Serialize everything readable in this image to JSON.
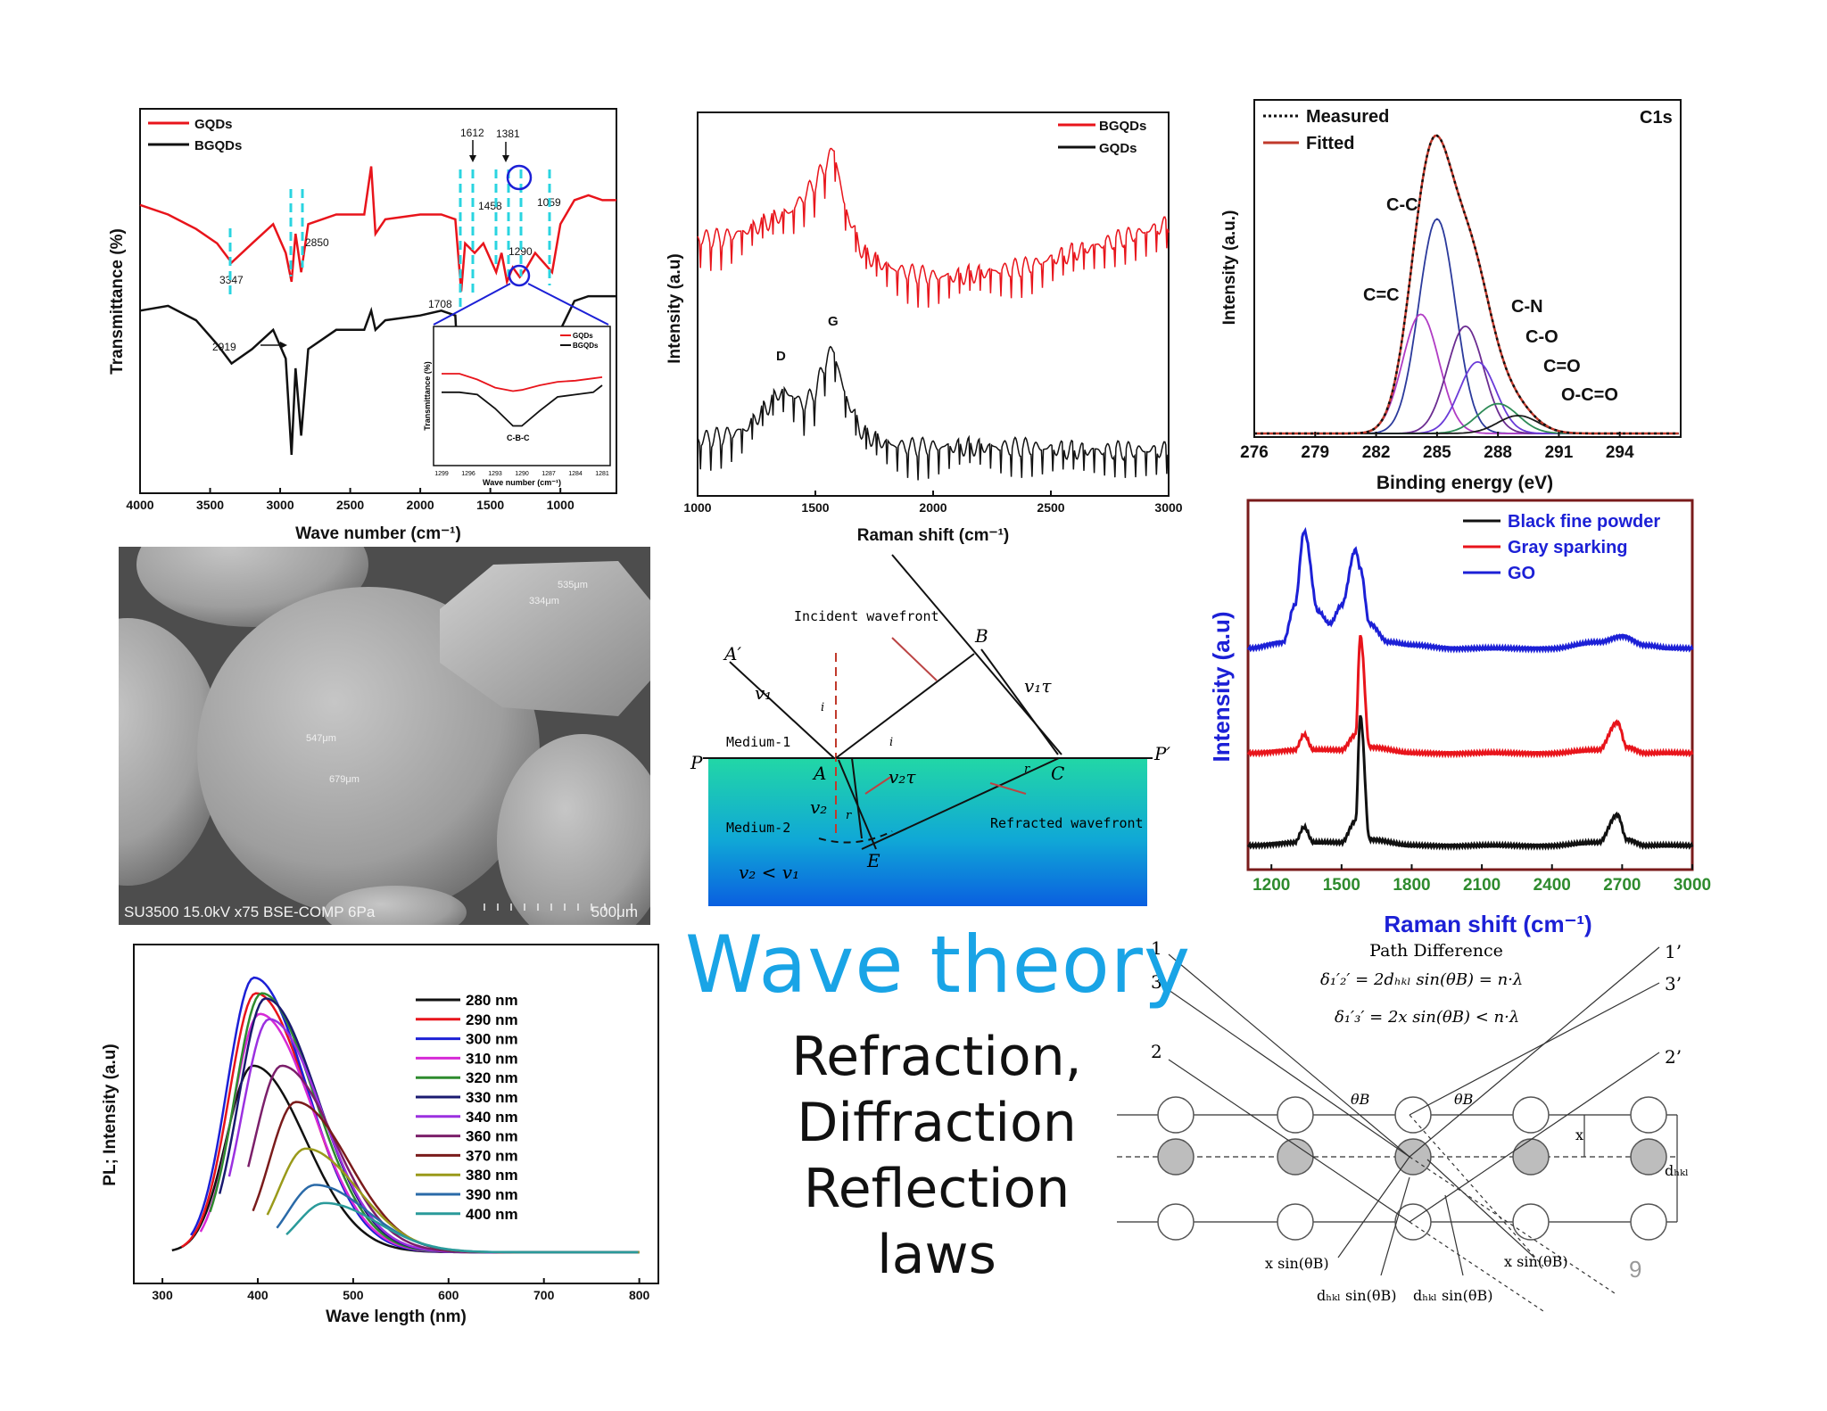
{
  "slide": {
    "title": "Wave theory",
    "subtitle_lines": [
      "Refraction,",
      "Diffraction",
      "Reflection",
      "laws"
    ],
    "page_number": "9",
    "accent_color": "#19a4e6"
  },
  "chart_data": [
    {
      "id": "ftir",
      "type": "line",
      "xlabel": "Wave number (cm⁻¹)",
      "ylabel": "Transmittance (%)",
      "xlim": [
        4000,
        600
      ],
      "x_ticks": [
        "4000",
        "3500",
        "3000",
        "2500",
        "2000",
        "1500",
        "1000"
      ],
      "legend": [
        {
          "name": "GQDs",
          "color": "#e8141b"
        },
        {
          "name": "BGQDs",
          "color": "#111111"
        }
      ],
      "peak_labels": [
        "3347",
        "2919",
        "2850",
        "1708",
        "1612",
        "1381",
        "1458",
        "1290",
        "1059"
      ],
      "series": [
        {
          "name": "GQDs",
          "x": [
            4000,
            3800,
            3600,
            3450,
            3347,
            3200,
            3050,
            2960,
            2919,
            2890,
            2850,
            2800,
            2600,
            2400,
            2350,
            2320,
            2250,
            2000,
            1850,
            1750,
            1708,
            1680,
            1612,
            1550,
            1458,
            1420,
            1381,
            1340,
            1290,
            1240,
            1180,
            1059,
            1000,
            900,
            800,
            700,
            600
          ],
          "y": [
            60,
            58,
            55,
            52,
            48,
            52,
            56,
            50,
            44,
            54,
            46,
            56,
            58,
            58,
            68,
            54,
            57,
            58,
            58,
            57,
            42,
            52,
            50,
            52,
            46,
            50,
            44,
            47,
            45,
            47,
            50,
            46,
            56,
            61,
            62,
            61,
            61
          ]
        },
        {
          "name": "BGQDs",
          "x": [
            4000,
            3800,
            3600,
            3450,
            3347,
            3200,
            3050,
            2960,
            2919,
            2890,
            2850,
            2800,
            2600,
            2400,
            2350,
            2320,
            2250,
            2000,
            1850,
            1750,
            1708,
            1680,
            1612,
            1550,
            1458,
            1420,
            1381,
            1340,
            1290,
            1240,
            1180,
            1059,
            1000,
            900,
            800,
            700,
            600
          ],
          "y": [
            38,
            39,
            36,
            31,
            27,
            30,
            34,
            28,
            8,
            26,
            12,
            30,
            34,
            34,
            38,
            34,
            36,
            37,
            38,
            37,
            14,
            32,
            26,
            34,
            22,
            30,
            24,
            28,
            22,
            28,
            32,
            24,
            34,
            40,
            41,
            41,
            41
          ]
        }
      ],
      "inset": {
        "xlabel": "Wave number (cm⁻¹)",
        "ylabel": "Transmittance (%)",
        "x_ticks": [
          "1299",
          "1296",
          "1293",
          "1290",
          "1287",
          "1284",
          "1281"
        ],
        "legend": [
          "GQDs",
          "BGQDs"
        ],
        "annotation": "C-B-C",
        "series": [
          {
            "name": "GQDs",
            "x": [
              1299,
              1297,
              1295,
              1293,
              1291,
              1290,
              1288,
              1286,
              1284,
              1282,
              1281
            ],
            "y": [
              70,
              70,
              65,
              58,
              55,
              56,
              60,
              63,
              64,
              66,
              67
            ]
          },
          {
            "name": "BGQDs",
            "x": [
              1299,
              1297,
              1295,
              1293,
              1291,
              1290,
              1288,
              1286,
              1284,
              1282,
              1281
            ],
            "y": [
              54,
              54,
              52,
              40,
              25,
              25,
              38,
              50,
              52,
              54,
              60
            ]
          }
        ]
      }
    },
    {
      "id": "raman_gqd",
      "type": "line",
      "xlabel": "Raman shift (cm⁻¹)",
      "ylabel": "Intensity (a.u)",
      "xlim": [
        1000,
        3000
      ],
      "x_ticks": [
        "1000",
        "1500",
        "2000",
        "2500",
        "3000"
      ],
      "legend": [
        {
          "name": "BGQDs",
          "color": "#e8141b"
        },
        {
          "name": "GQDs",
          "color": "#111111"
        }
      ],
      "peak_labels": [
        "D",
        "G"
      ],
      "series": [
        {
          "name": "BGQDs",
          "x": [
            1000,
            1100,
            1200,
            1300,
            1400,
            1500,
            1550,
            1580,
            1620,
            1700,
            1800,
            1900,
            2000,
            2100,
            2200,
            2300,
            2400,
            2500,
            2600,
            2700,
            2800,
            2900,
            3000
          ],
          "y": [
            70,
            70,
            72,
            75,
            78,
            86,
            92,
            96,
            80,
            66,
            62,
            60,
            59,
            59,
            60,
            61,
            62,
            64,
            66,
            68,
            70,
            72,
            74
          ]
        },
        {
          "name": "GQDs",
          "x": [
            1000,
            1100,
            1200,
            1300,
            1350,
            1400,
            1450,
            1500,
            1550,
            1580,
            1620,
            1700,
            1800,
            1900,
            2000,
            2200,
            2400,
            2600,
            2800,
            3000
          ],
          "y": [
            12,
            13,
            15,
            22,
            26,
            25,
            22,
            26,
            36,
            38,
            26,
            14,
            11,
            10,
            10,
            10,
            10,
            9,
            9,
            9
          ]
        }
      ]
    },
    {
      "id": "xps_c1s",
      "type": "line",
      "title": "C1s",
      "xlabel": "Binding energy (eV)",
      "ylabel": "Intensity (a.u.)",
      "xlim": [
        276,
        297
      ],
      "x_ticks": [
        "276",
        "279",
        "282",
        "285",
        "288",
        "291",
        "294"
      ],
      "legend": [
        {
          "name": "Measured",
          "style": "dotted"
        },
        {
          "name": "Fitted",
          "color": "#c0392b"
        }
      ],
      "peak_labels": [
        "C-C",
        "C=C",
        "C-N",
        "C-O",
        "C=O",
        "O-C=O"
      ],
      "components": [
        {
          "name": "C-C",
          "center": 285.0,
          "height": 0.72,
          "width": 0.9,
          "color": "#2b3a9c"
        },
        {
          "name": "C=C",
          "center": 284.2,
          "height": 0.4,
          "width": 0.9,
          "color": "#b03cc4"
        },
        {
          "name": "C-N",
          "center": 286.4,
          "height": 0.36,
          "width": 0.9,
          "color": "#6b2c91"
        },
        {
          "name": "C-O",
          "center": 287.0,
          "height": 0.24,
          "width": 0.9,
          "color": "#6a3bd8"
        },
        {
          "name": "C=O",
          "center": 288.0,
          "height": 0.1,
          "width": 1.0,
          "color": "#2e8b57"
        },
        {
          "name": "O-C=O",
          "center": 289.0,
          "height": 0.06,
          "width": 1.0,
          "color": "#1b1b1b"
        }
      ],
      "envelope_peak": 1.0
    },
    {
      "id": "raman_powder",
      "type": "line",
      "xlabel": "Raman shift (cm⁻¹)",
      "ylabel": "Intensity (a.u)",
      "xlim": [
        1100,
        3000
      ],
      "x_ticks": [
        "1200",
        "1500",
        "1800",
        "2100",
        "2400",
        "2700",
        "3000"
      ],
      "legend": [
        {
          "name": "Black fine powder",
          "color": "#111111"
        },
        {
          "name": "Gray sparking",
          "color": "#e8141b"
        },
        {
          "name": "GO",
          "color": "#1c20d6"
        }
      ],
      "series": [
        {
          "name": "Black fine powder",
          "x": [
            1100,
            1300,
            1340,
            1380,
            1500,
            1560,
            1580,
            1620,
            1800,
            2000,
            2400,
            2600,
            2680,
            2720,
            2800,
            3000
          ],
          "y": [
            2,
            3,
            8,
            3,
            3,
            10,
            44,
            4,
            2,
            2,
            2,
            3,
            12,
            4,
            2,
            2
          ]
        },
        {
          "name": "Gray sparking",
          "x": [
            1100,
            1300,
            1340,
            1380,
            1500,
            1560,
            1580,
            1620,
            1800,
            2000,
            2400,
            2600,
            2680,
            2720,
            2800,
            3000
          ],
          "y": [
            32,
            33,
            38,
            33,
            33,
            38,
            70,
            34,
            32,
            32,
            32,
            33,
            42,
            34,
            32,
            32
          ]
        },
        {
          "name": "GO",
          "x": [
            1100,
            1250,
            1300,
            1340,
            1400,
            1450,
            1500,
            1560,
            1580,
            1620,
            1700,
            1800,
            2000,
            2400,
            2600,
            2700,
            2800,
            2900,
            3000
          ],
          "y": [
            66,
            68,
            80,
            104,
            78,
            74,
            80,
            98,
            92,
            74,
            68,
            67,
            66,
            66,
            68,
            70,
            67,
            66,
            66
          ]
        }
      ]
    },
    {
      "id": "pl",
      "type": "line",
      "xlabel": "Wave length (nm)",
      "ylabel": "PL; Intensity (a.u)",
      "xlim": [
        270,
        820
      ],
      "x_ticks": [
        "300",
        "400",
        "500",
        "600",
        "700",
        "800"
      ],
      "series": [
        {
          "name": "280 nm",
          "color": "#111111",
          "peak": 395,
          "height": 0.72,
          "start": 310
        },
        {
          "name": "290 nm",
          "color": "#e8141b",
          "peak": 398,
          "height": 1.0,
          "start": 320
        },
        {
          "name": "300 nm",
          "color": "#1c20d6",
          "peak": 396,
          "height": 1.06,
          "start": 330
        },
        {
          "name": "310 nm",
          "color": "#d62ad6",
          "peak": 402,
          "height": 0.92,
          "start": 340
        },
        {
          "name": "320 nm",
          "color": "#2e8b2e",
          "peak": 404,
          "height": 1.0,
          "start": 350
        },
        {
          "name": "330 nm",
          "color": "#1a1a70",
          "peak": 408,
          "height": 0.98,
          "start": 360
        },
        {
          "name": "340 nm",
          "color": "#9b30e0",
          "peak": 412,
          "height": 0.9,
          "start": 370
        },
        {
          "name": "360 nm",
          "color": "#7b1f6a",
          "peak": 425,
          "height": 0.72,
          "start": 390
        },
        {
          "name": "370 nm",
          "color": "#7a1b1b",
          "peak": 440,
          "height": 0.58,
          "start": 395
        },
        {
          "name": "380 nm",
          "color": "#9a9a1a",
          "peak": 450,
          "height": 0.4,
          "start": 410
        },
        {
          "name": "390 nm",
          "color": "#2a6aa8",
          "peak": 460,
          "height": 0.26,
          "start": 420
        },
        {
          "name": "400 nm",
          "color": "#2a9a9a",
          "peak": 470,
          "height": 0.19,
          "start": 430
        }
      ]
    }
  ],
  "sem": {
    "caption": "SU3500 15.0kV x75 BSE-COMP 6Pa",
    "scale": "500μm",
    "measurements": [
      "535μm",
      "334μm",
      "547μm",
      "679μm"
    ]
  },
  "refraction": {
    "incident_wavefront": "Incident wavefront",
    "refracted_wavefront": "Refracted wavefront",
    "medium1": "Medium-1",
    "medium2": "Medium-2",
    "labels": {
      "A_prime": "A′",
      "B": "B",
      "P": "P",
      "P_prime": "P′",
      "A": "A",
      "C": "C",
      "E": "E",
      "v1": "v₁",
      "v2": "v₂",
      "v1tau": "v₁τ",
      "v2tau": "v₂τ",
      "i": "i",
      "r": "r",
      "cond": "v₂ < v₁"
    }
  },
  "bragg": {
    "title": "Path Difference",
    "eq1": "δ₁′₂′ = 2dₕₖₗ sin(θB) = n·λ",
    "eq2": "δ₁′₃′ = 2x sin(θB) < n·λ",
    "ray_labels": [
      "1",
      "3",
      "2",
      "1’",
      "3’",
      "2’"
    ],
    "theta": "θB",
    "x": "x",
    "dhkl": "dₕₖₗ",
    "bottom_labels": [
      "x sin(θB)",
      "x sin(θB)",
      "dₕₖₗ sin(θB)",
      "dₕₖₗ sin(θB)"
    ]
  }
}
